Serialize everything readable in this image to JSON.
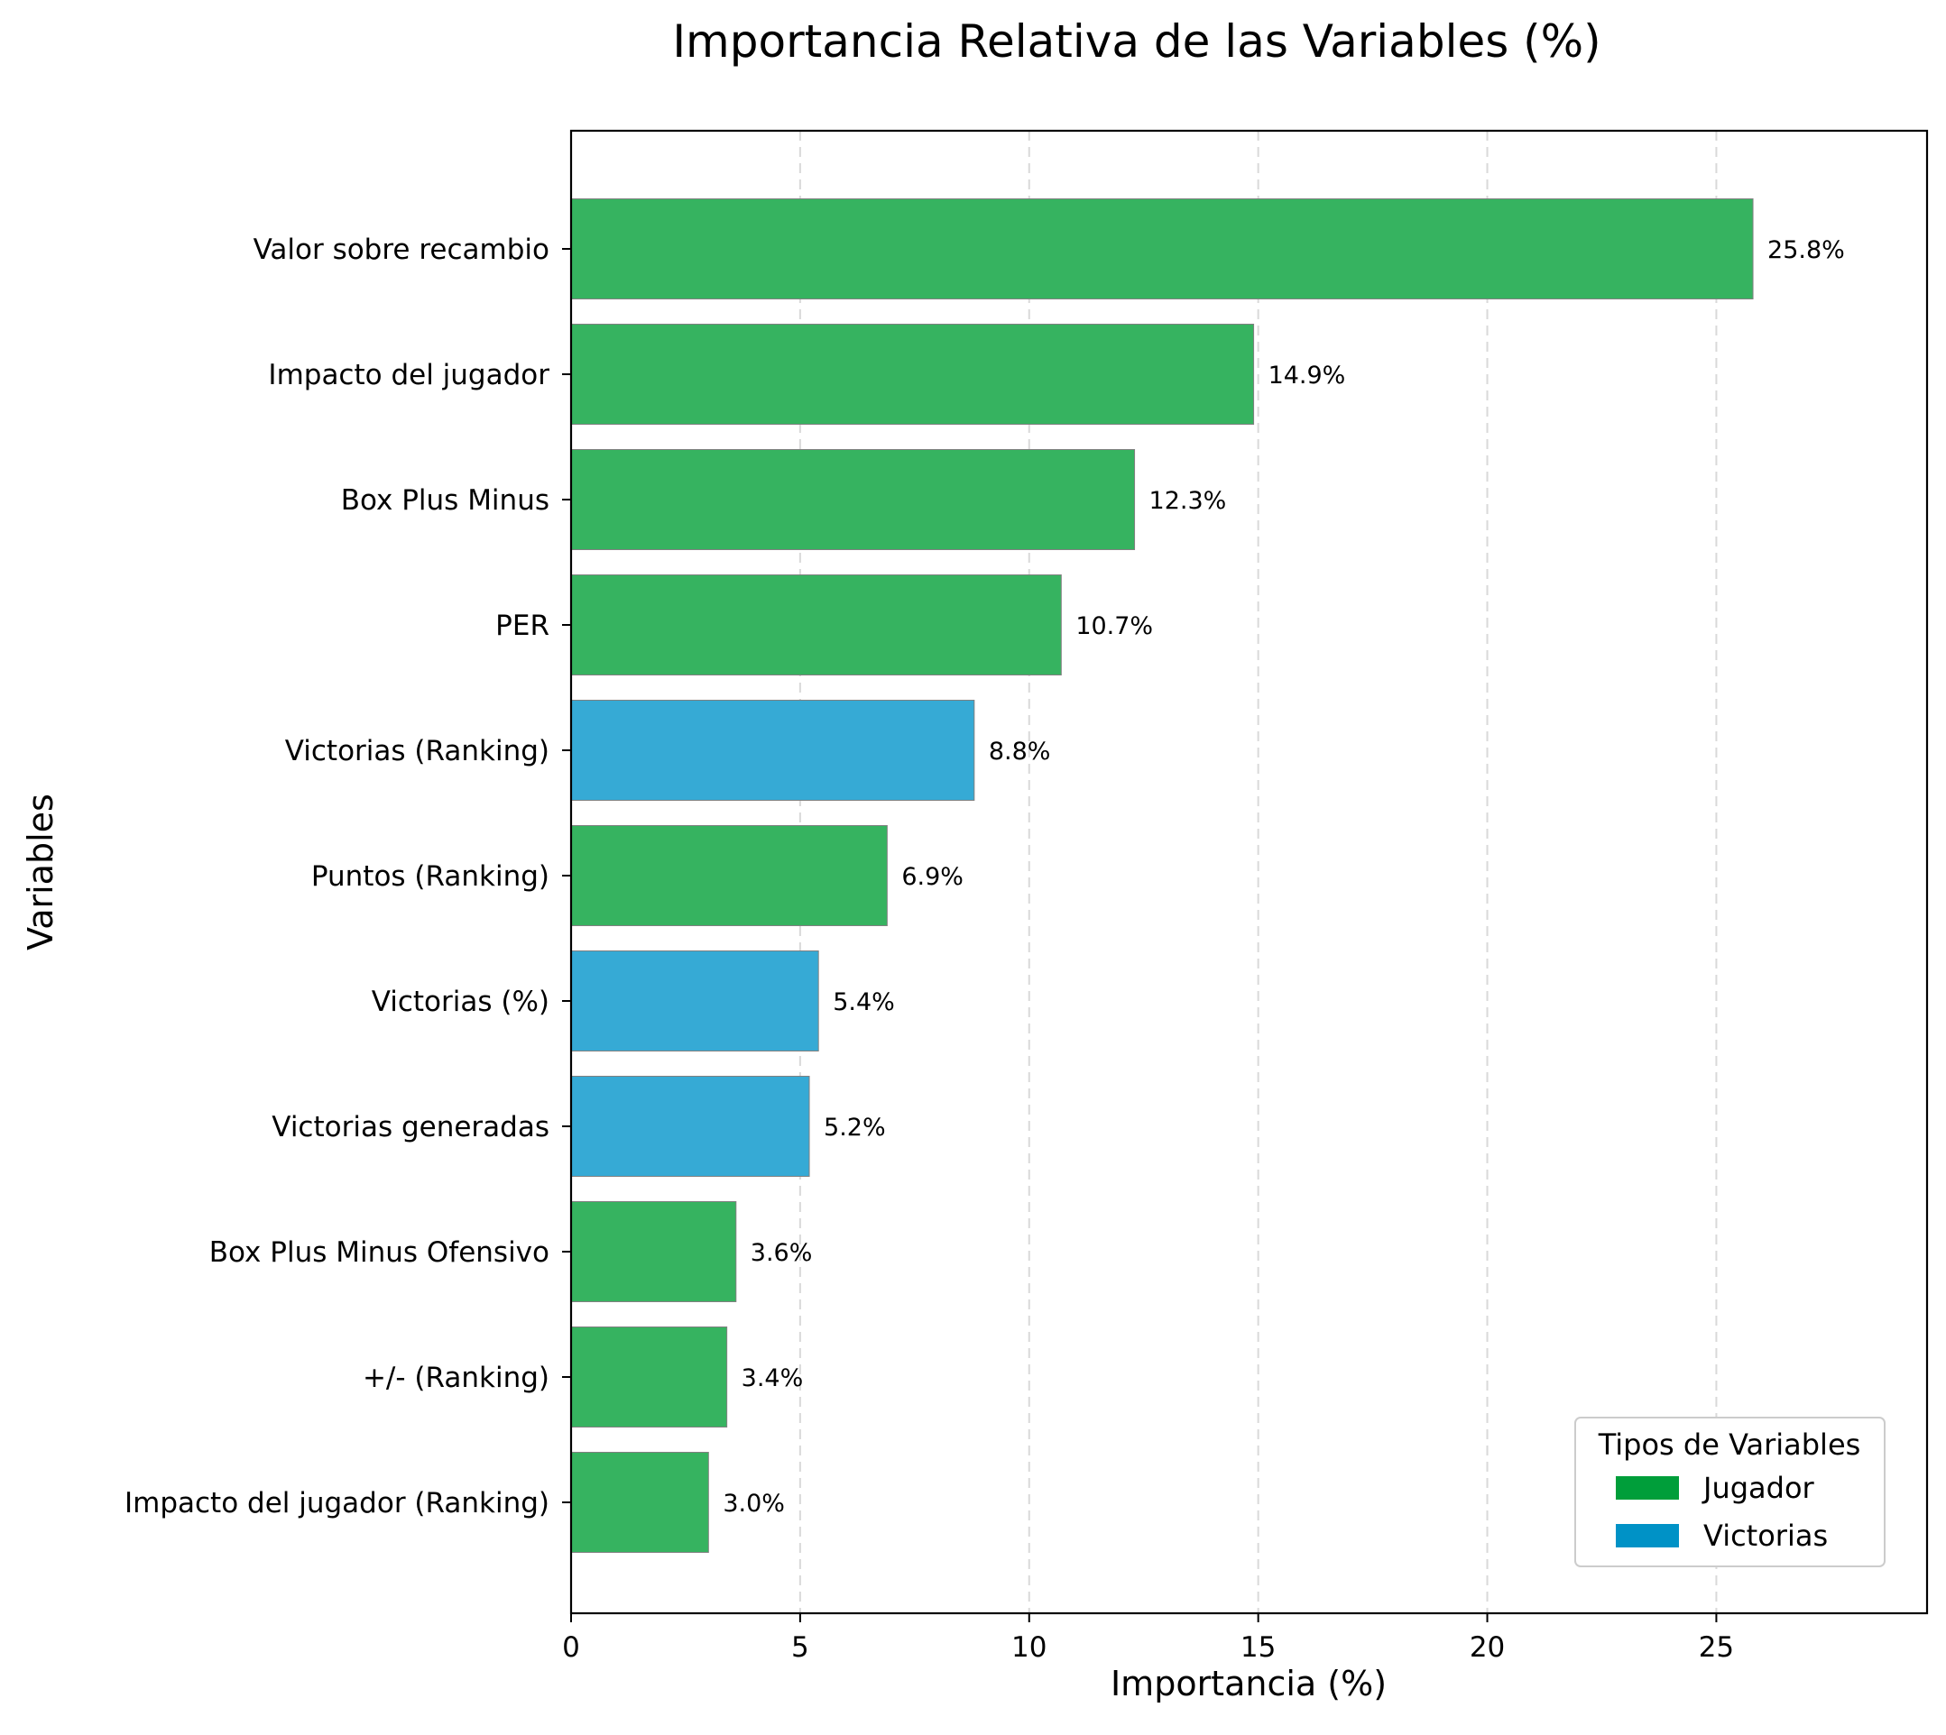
{
  "chart_data": {
    "type": "bar",
    "orientation": "horizontal",
    "title": "Importancia Relativa de las Variables (%)",
    "xlabel": "Importancia (%)",
    "ylabel": "Variables",
    "xlim": [
      0,
      29.6
    ],
    "xticks": [
      0,
      5,
      10,
      15,
      20,
      25
    ],
    "grid": "x-dashed",
    "categories": [
      "Valor sobre recambio",
      "Impacto del jugador",
      "Box Plus Minus",
      "PER",
      "Victorias (Ranking)",
      "Puntos (Ranking)",
      "Victorias (%)",
      "Victorias generadas",
      "Box Plus Minus Ofensivo",
      "+/- (Ranking)",
      "Impacto del jugador (Ranking)"
    ],
    "values": [
      25.8,
      14.9,
      12.3,
      10.7,
      8.8,
      6.9,
      5.4,
      5.2,
      3.6,
      3.4,
      3.0
    ],
    "data_labels": [
      "25.8%",
      "14.9%",
      "12.3%",
      "10.7%",
      "8.8%",
      "6.9%",
      "5.4%",
      "5.2%",
      "3.6%",
      "3.4%",
      "3.0%"
    ],
    "types": [
      "Jugador",
      "Jugador",
      "Jugador",
      "Jugador",
      "Victorias",
      "Jugador",
      "Victorias",
      "Victorias",
      "Jugador",
      "Jugador",
      "Jugador"
    ],
    "legend": {
      "title": "Tipos de Variables",
      "placement": "lower-right",
      "entries": [
        {
          "label": "Jugador",
          "color": "#009E3A"
        },
        {
          "label": "Victorias",
          "color": "#0092C6"
        }
      ]
    },
    "bar_colors": {
      "Jugador": "#36B360",
      "Victorias": "#36AAD5"
    }
  }
}
